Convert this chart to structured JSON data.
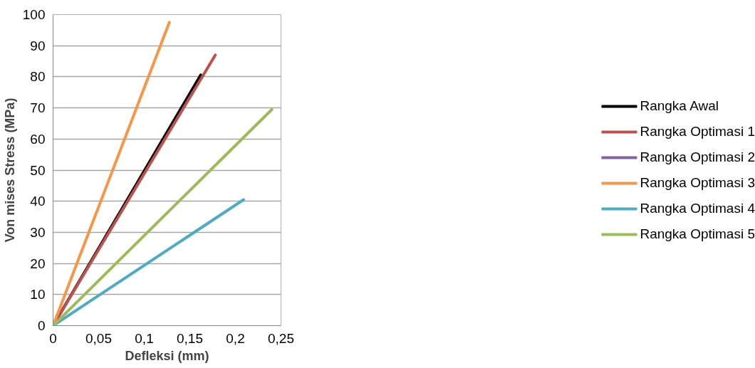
{
  "chart_data": {
    "type": "line",
    "xlabel": "Defleksi (mm)",
    "ylabel": "Von mises Stress (MPa)",
    "series": [
      {
        "name": "Rangka Awal",
        "color": "#000000",
        "x": [
          0,
          0.162
        ],
        "values": [
          0,
          80.6
        ]
      },
      {
        "name": "Rangka Optimasi 1",
        "color": "#c0504d",
        "x": [
          0,
          0.178
        ],
        "values": [
          0,
          87
        ]
      },
      {
        "name": "Rangka Optimasi 2",
        "color": "#8064a2",
        "x": [
          null,
          null
        ],
        "values": [
          null,
          null
        ]
      },
      {
        "name": "Rangka Optimasi 3",
        "color": "#f79646",
        "x": [
          0,
          0.1275
        ],
        "values": [
          0,
          97.5
        ]
      },
      {
        "name": "Rangka Optimasi 4",
        "color": "#4bacc6",
        "x": [
          0,
          0.209
        ],
        "values": [
          0,
          40.5
        ]
      },
      {
        "name": "Rangka Optimasi 5",
        "color": "#9bbb59",
        "x": [
          0,
          0.24
        ],
        "values": [
          0,
          69.5
        ]
      }
    ],
    "xlim": [
      0,
      0.25
    ],
    "ylim": [
      0,
      100
    ],
    "xticks": [
      0,
      {
        "value": 0.05,
        "label": "0,05"
      },
      {
        "value": 0.1,
        "label": "0,1"
      },
      {
        "value": 0.15,
        "label": "0,15"
      },
      {
        "value": 0.2,
        "label": "0,2"
      },
      {
        "value": 0.25,
        "label": "0,25"
      }
    ],
    "yticks": [
      0,
      10,
      20,
      30,
      40,
      50,
      60,
      70,
      80,
      90,
      100
    ],
    "grid": "y",
    "legend": "right",
    "marker": "none",
    "line_style": "solid"
  }
}
